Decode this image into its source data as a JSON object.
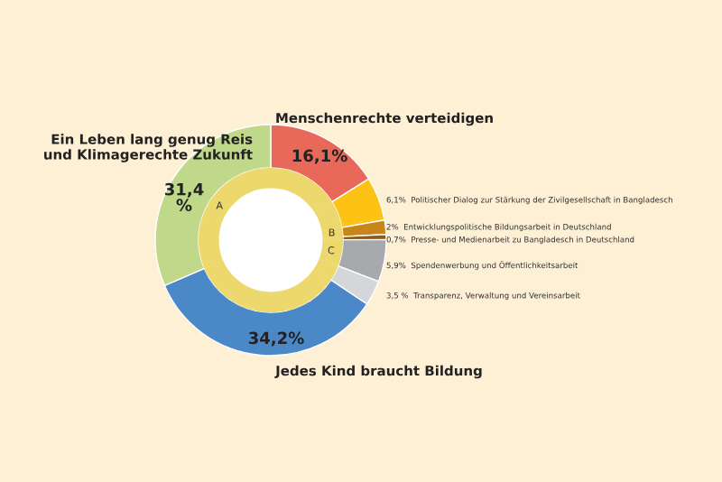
{
  "chart_data": {
    "type": "donut",
    "legend": false,
    "categories": [
      "Menschenrechte verteidigen",
      "Politischer Dialog zur Stärkung der Zivilgesellschaft in Bangladesch",
      "Entwicklungspolitische Bildungsarbeit in Deutschland",
      "Presse- und Medienarbeit zu Bangladesch in Deutschland",
      "Spendenwerbung und Öffentlichkeitsarbeit",
      "Transparenz, Verwaltung und Vereinsarbeit",
      "Jedes Kind braucht Bildung",
      "Ein Leben lang genug Reis und Klimagerechte Zukunft"
    ],
    "series": [
      {
        "values": [
          16.1,
          6.1,
          2,
          0.7,
          5.9,
          3.5,
          34.2,
          31.4
        ],
        "value_labels": [
          "16,1%",
          "6,1%",
          "2%",
          "0,7%",
          "5,9%",
          "3,5 %",
          "34,2%",
          "31,4\n%"
        ],
        "colors": [
          "#e8695a",
          "#fcc314",
          "#c8861a",
          "#8a5a1e",
          "#a7a9ad",
          "#d5d6d9",
          "#4a88c8",
          "#bfd88a"
        ]
      },
      {
        "values": [
          16.1,
          6.1,
          2,
          0.7,
          5.9,
          3.5,
          34.2,
          31.4
        ],
        "value_labels": [
          null,
          null,
          "B",
          null,
          "C",
          null,
          null,
          "A"
        ],
        "colors": [
          "#ecd86c",
          "#ecd86c",
          "#ecd86c",
          "#ecd86c",
          "#ecd86c",
          "#ecd86c",
          "#ecd86c",
          "#ecd86c"
        ]
      }
    ]
  }
}
